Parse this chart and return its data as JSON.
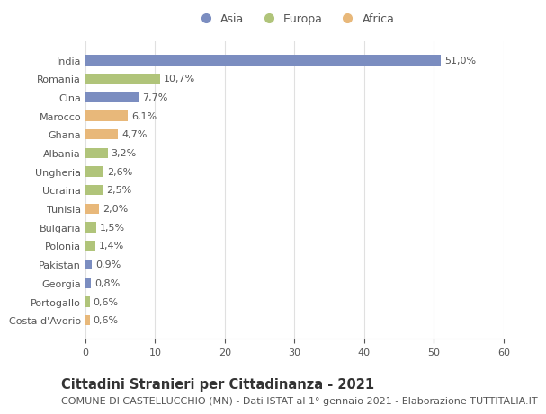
{
  "categories": [
    "India",
    "Romania",
    "Cina",
    "Marocco",
    "Ghana",
    "Albania",
    "Ungheria",
    "Ucraina",
    "Tunisia",
    "Bulgaria",
    "Polonia",
    "Pakistan",
    "Georgia",
    "Portogallo",
    "Costa d'Avorio"
  ],
  "values": [
    51.0,
    10.7,
    7.7,
    6.1,
    4.7,
    3.2,
    2.6,
    2.5,
    2.0,
    1.5,
    1.4,
    0.9,
    0.8,
    0.6,
    0.6
  ],
  "labels": [
    "51,0%",
    "10,7%",
    "7,7%",
    "6,1%",
    "4,7%",
    "3,2%",
    "2,6%",
    "2,5%",
    "2,0%",
    "1,5%",
    "1,4%",
    "0,9%",
    "0,8%",
    "0,6%",
    "0,6%"
  ],
  "continents": [
    "Asia",
    "Europa",
    "Asia",
    "Africa",
    "Africa",
    "Europa",
    "Europa",
    "Europa",
    "Africa",
    "Europa",
    "Europa",
    "Asia",
    "Asia",
    "Europa",
    "Africa"
  ],
  "colors": {
    "Asia": "#7b8dc0",
    "Europa": "#b0c47a",
    "Africa": "#e8b87a"
  },
  "title": "Cittadini Stranieri per Cittadinanza - 2021",
  "subtitle": "COMUNE DI CASTELLUCCHIO (MN) - Dati ISTAT al 1° gennaio 2021 - Elaborazione TUTTITALIA.IT",
  "xlim": [
    0,
    60
  ],
  "xticks": [
    0,
    10,
    20,
    30,
    40,
    50,
    60
  ],
  "background_color": "#ffffff",
  "bar_background": "#ffffff",
  "grid_color": "#e0e0e0",
  "title_fontsize": 10.5,
  "subtitle_fontsize": 8,
  "label_fontsize": 8,
  "tick_fontsize": 8,
  "legend_fontsize": 9
}
